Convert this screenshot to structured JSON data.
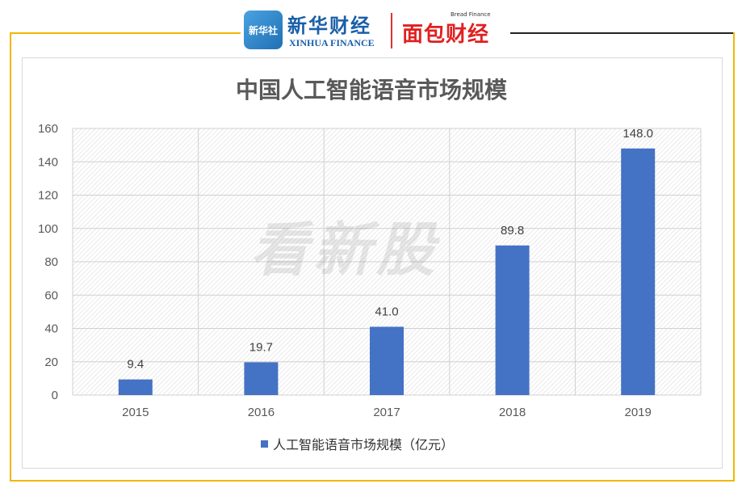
{
  "header": {
    "logo_xinhua_badge": "新华社",
    "logo_xinhua_name": "新华财经",
    "logo_xinhua_sub": "XINHUA FINANCE",
    "logo_bread_top": "Bread Finance",
    "logo_bread": "面包财经"
  },
  "watermark": "看新股",
  "colors": {
    "bar": "#4472c4",
    "frame_accent": "#f2b705",
    "logo_blue": "#1a5fa8",
    "logo_red": "#e02020"
  },
  "chart_data": {
    "type": "bar",
    "title": "中国人工智能语音市场规模",
    "categories": [
      "2015",
      "2016",
      "2017",
      "2018",
      "2019"
    ],
    "series": [
      {
        "name": "人工智能语音市场规模（亿元）",
        "values": [
          9.4,
          19.7,
          41.0,
          89.8,
          148.0
        ]
      }
    ],
    "value_labels": [
      "9.4",
      "19.7",
      "41.0",
      "89.8",
      "148.0"
    ],
    "ylim": [
      0,
      160
    ],
    "yticks": [
      0,
      20,
      40,
      60,
      80,
      100,
      120,
      140,
      160
    ],
    "grid": true,
    "legend_position": "bottom"
  }
}
